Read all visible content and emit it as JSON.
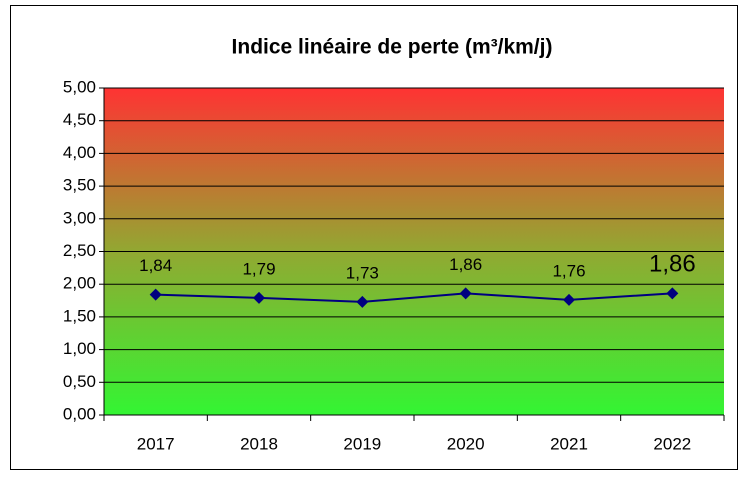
{
  "chart_data": {
    "type": "line",
    "title": "Indice linéaire de perte (m³/km/j)",
    "categories": [
      "2017",
      "2018",
      "2019",
      "2020",
      "2021",
      "2022"
    ],
    "series": [
      {
        "name": "Indice linéaire de perte",
        "color": "#000080",
        "values": [
          1.84,
          1.79,
          1.73,
          1.86,
          1.76,
          1.86
        ],
        "value_labels": [
          "1,84",
          "1,79",
          "1,73",
          "1,86",
          "1,76",
          "1,86"
        ]
      }
    ],
    "ylim": [
      0,
      5
    ],
    "yticks": [
      {
        "value": 0,
        "label": "0,00"
      },
      {
        "value": 0.5,
        "label": "0,50"
      },
      {
        "value": 1,
        "label": "1,00"
      },
      {
        "value": 1.5,
        "label": "1,50"
      },
      {
        "value": 2,
        "label": "2,00"
      },
      {
        "value": 2.5,
        "label": "2,50"
      },
      {
        "value": 3,
        "label": "3,00"
      },
      {
        "value": 3.5,
        "label": "3,50"
      },
      {
        "value": 4,
        "label": "4,00"
      },
      {
        "value": 4.5,
        "label": "4,50"
      },
      {
        "value": 5,
        "label": "5,00"
      }
    ],
    "grid": true
  }
}
